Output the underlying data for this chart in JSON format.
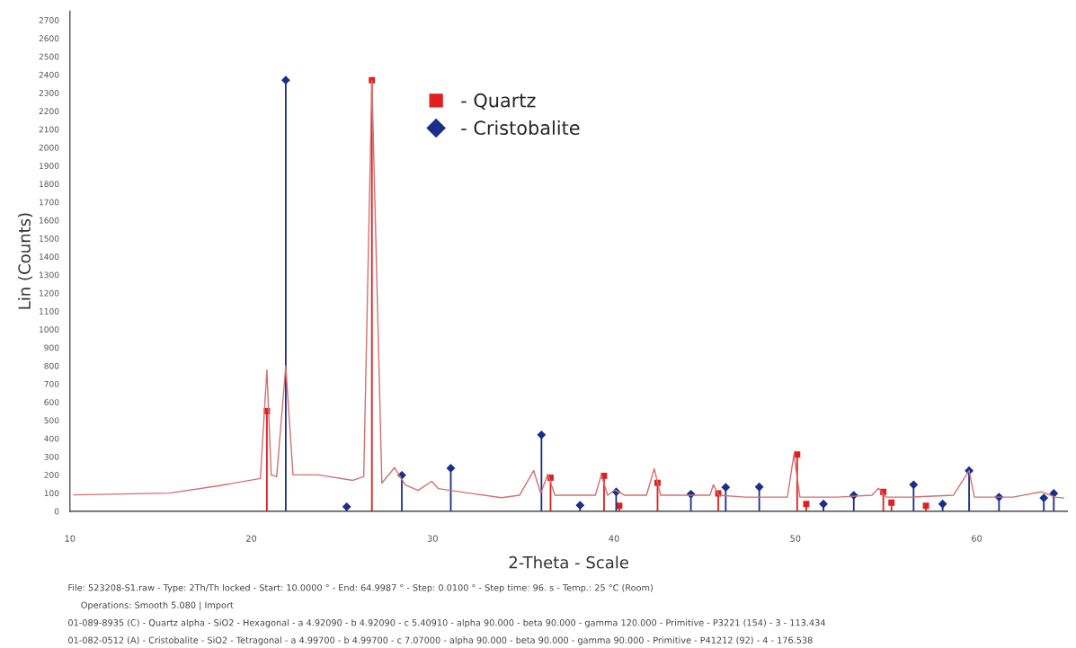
{
  "chart_data": {
    "type": "line",
    "xlabel": "2-Theta - Scale",
    "ylabel": "Lin (Counts)",
    "xlim": [
      10,
      65
    ],
    "xticks": [
      10,
      20,
      30,
      40,
      50,
      60
    ],
    "ylim": [
      0,
      2750
    ],
    "yticks": [
      0,
      100,
      200,
      300,
      400,
      500,
      600,
      700,
      800,
      900,
      1000,
      1100,
      1200,
      1300,
      1400,
      1500,
      1600,
      1700,
      1800,
      1900,
      2000,
      2100,
      2200,
      2300,
      2400,
      2500,
      2600,
      2700
    ],
    "grid": false,
    "legend": "top",
    "series": [
      {
        "color": "#d27070",
        "marker": "none",
        "x": [
          10.2,
          15.5,
          18.2,
          20.5,
          20.86,
          21.1,
          21.4,
          21.9,
          22.3,
          23.7,
          25.6,
          26.2,
          26.65,
          27.2,
          27.9,
          28.5,
          29.2,
          29.95,
          30.3,
          32.0,
          33.8,
          34.79,
          35.57,
          35.96,
          36.35,
          36.74,
          37.9,
          38.97,
          39.3,
          39.65,
          40.04,
          40.6,
          41.79,
          42.22,
          42.57,
          44.12,
          45.29,
          45.48,
          45.77,
          47.23,
          49.56,
          49.92,
          50.25,
          52.29,
          54.23,
          54.58,
          55.0,
          56.37,
          58.71,
          59.58,
          59.87,
          62.0,
          63.56,
          64.34,
          64.8
        ],
        "values": [
          90,
          100,
          140,
          180,
          777,
          200,
          190,
          800,
          200,
          200,
          170,
          190,
          2370,
          155,
          240,
          145,
          115,
          165,
          125,
          100,
          75,
          88,
          224,
          98,
          204,
          88,
          88,
          88,
          200,
          88,
          117,
          88,
          88,
          234,
          88,
          88,
          88,
          146,
          88,
          78,
          78,
          312,
          78,
          78,
          88,
          127,
          78,
          78,
          88,
          224,
          78,
          78,
          107,
          78,
          73
        ]
      },
      {
        "type": "lollipop",
        "name": "- Quartz",
        "color": "#e02020",
        "marker": "square",
        "x": [
          20.86,
          26.65,
          36.5,
          39.45,
          40.29,
          42.4,
          45.75,
          50.1,
          50.6,
          54.85,
          55.3,
          57.2
        ],
        "values": [
          550,
          2370,
          185,
          195,
          30,
          156,
          98,
          312,
          40,
          107,
          48,
          30
        ]
      },
      {
        "type": "lollipop",
        "name": "- Cristobalite",
        "color": "#1a2f8a",
        "marker": "diamond",
        "x": [
          21.9,
          25.26,
          28.3,
          31.0,
          36.0,
          38.13,
          40.12,
          44.24,
          46.16,
          48.01,
          51.55,
          53.22,
          56.52,
          58.12,
          59.58,
          61.23,
          63.7,
          64.25
        ],
        "values": [
          2370,
          25,
          198,
          237,
          420,
          33,
          107,
          94,
          132,
          134,
          40,
          88,
          146,
          40,
          223,
          78,
          73,
          98
        ]
      }
    ],
    "annotations": [
      "File: 523208-S1.raw - Type: 2Th/Th locked - Start: 10.0000 ° - End: 64.9987 ° - Step: 0.0100 ° - Step time: 96. s - Temp.: 25 °C (Room)",
      "Operations: Smooth 5.080 | Import",
      "01-089-8935 (C) - Quartz alpha - SiO2 - Hexagonal - a 4.92090 - b 4.92090 - c 5.40910 - alpha 90.000 - beta 90.000 - gamma 120.000 - Primitive - P3221 (154) - 3 - 113.434",
      "01-082-0512 (A) - Cristobalite - SiO2 - Tetragonal - a 4.99700 - b 4.99700 - c 7.07000 - alpha 90.000 - beta 90.000 - gamma 90.000 - Primitive - P41212 (92) - 4 - 176.538"
    ]
  }
}
